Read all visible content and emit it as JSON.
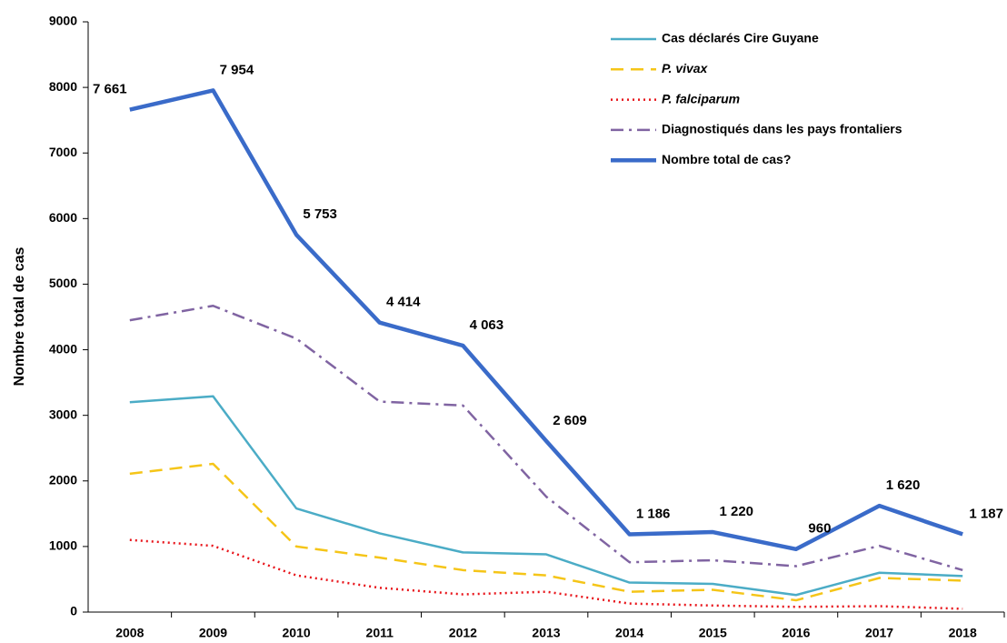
{
  "chart_data": {
    "type": "line",
    "y_label": "Nombre total de cas",
    "categories": [
      "2008",
      "2009",
      "2010",
      "2011",
      "2012",
      "2013",
      "2014",
      "2015",
      "2016",
      "2017",
      "2018"
    ],
    "ylim": [
      0,
      9000
    ],
    "yticks": [
      0,
      1000,
      2000,
      3000,
      4000,
      5000,
      6000,
      7000,
      8000,
      9000
    ],
    "legend": "top-right",
    "series": [
      {
        "name": "Cas déclarés Cire Guyane",
        "color": "#4bacc6",
        "dash": "solid",
        "width": 2.5,
        "italic": false,
        "values": [
          3200,
          3290,
          1580,
          1200,
          910,
          880,
          450,
          430,
          260,
          600,
          550
        ]
      },
      {
        "name": "P. vivax",
        "color": "#f5c518",
        "dash": "dashed",
        "width": 2.5,
        "italic": true,
        "values": [
          2110,
          2260,
          1000,
          830,
          640,
          560,
          310,
          340,
          180,
          520,
          480
        ]
      },
      {
        "name": "P. falciparum",
        "color": "#e8141a",
        "dash": "dotted",
        "width": 2.5,
        "italic": true,
        "values": [
          1100,
          1010,
          560,
          370,
          270,
          310,
          130,
          100,
          80,
          90,
          50
        ]
      },
      {
        "name": "Diagnostiqués dans les pays frontaliers",
        "color": "#8064a2",
        "dash": "dashdot",
        "width": 2.5,
        "italic": false,
        "values": [
          4450,
          4670,
          4170,
          3210,
          3150,
          1760,
          760,
          790,
          700,
          1010,
          640
        ]
      },
      {
        "name": "Nombre total de cas?",
        "color": "#3a6bc9",
        "dash": "solid",
        "width": 4.5,
        "italic": false,
        "values": [
          7661,
          7954,
          5753,
          4414,
          4063,
          2609,
          1186,
          1220,
          960,
          1620,
          1187
        ],
        "value_labels": [
          "7 661",
          "7 954",
          "5 753",
          "4 414",
          "4 063",
          "2 609",
          "1 186",
          "1 220",
          "960",
          "1 620",
          "1 187"
        ]
      }
    ]
  }
}
